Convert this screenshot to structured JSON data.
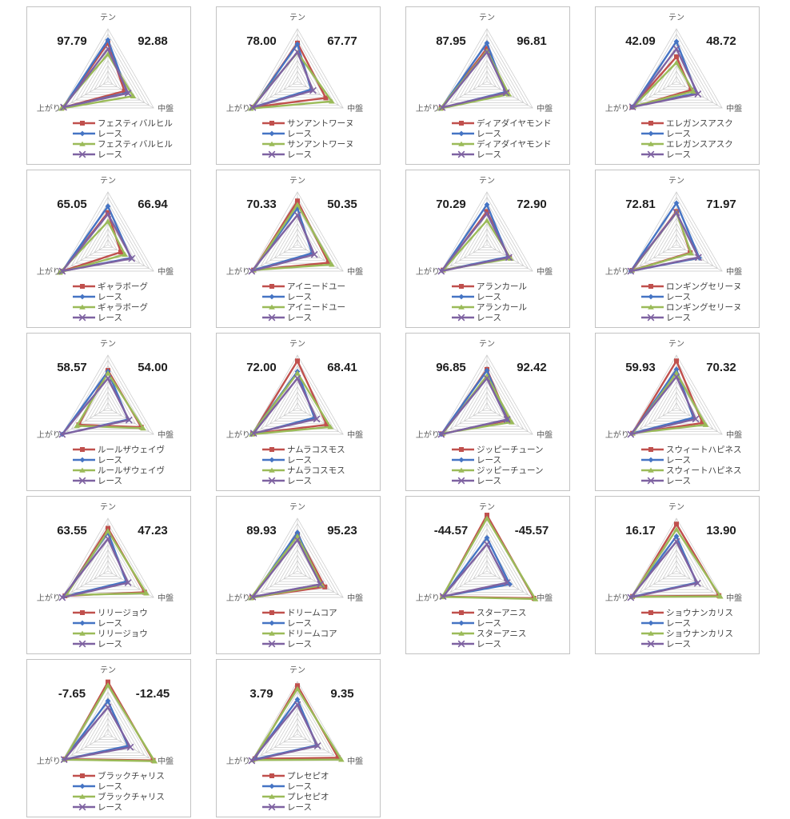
{
  "axis_labels": {
    "top": "テン",
    "right": "中盤",
    "left": "上がり"
  },
  "legend_series_label": "レース",
  "colors": {
    "red": "#C0504D",
    "blue": "#4574C4",
    "green": "#9BBB59",
    "purple": "#7E62A1",
    "grid": "#C9C9C9",
    "panel_border": "#C3C3C3",
    "value_text": "#1F1F1F",
    "axis_text": "#595959",
    "legend_text": "#404040"
  },
  "chart_data": [
    {
      "type": "radar",
      "name": "フェスティバルヒル",
      "left_value": "97.79",
      "right_value": "92.88",
      "axes": [
        "テン",
        "中盤",
        "上がり"
      ],
      "legend": [
        "フェスティバルヒル",
        "レース",
        "フェスティバルヒル",
        "レース"
      ],
      "series": [
        {
          "color": "red",
          "marker": "square",
          "values": [
            0.73,
            0.36,
            0.98
          ]
        },
        {
          "color": "blue",
          "marker": "diamond",
          "values": [
            0.79,
            0.42,
            0.98
          ]
        },
        {
          "color": "green",
          "marker": "triangle",
          "values": [
            0.52,
            0.55,
            1.02
          ]
        },
        {
          "color": "purple",
          "marker": "x",
          "values": [
            0.62,
            0.44,
            0.97
          ]
        }
      ]
    },
    {
      "type": "radar",
      "name": "サンアントワーヌ",
      "left_value": "78.00",
      "right_value": "67.77",
      "axes": [
        "テン",
        "中盤",
        "上がり"
      ],
      "legend": [
        "サンアントワーヌ",
        "レース",
        "サンアントワーヌ",
        "レース"
      ],
      "series": [
        {
          "color": "red",
          "marker": "square",
          "values": [
            0.73,
            0.62,
            0.97
          ]
        },
        {
          "color": "blue",
          "marker": "diamond",
          "values": [
            0.71,
            0.3,
            0.97
          ]
        },
        {
          "color": "green",
          "marker": "triangle",
          "values": [
            0.55,
            0.75,
            1.02
          ]
        },
        {
          "color": "purple",
          "marker": "x",
          "values": [
            0.56,
            0.34,
            0.98
          ]
        }
      ]
    },
    {
      "type": "radar",
      "name": "ディアダイヤモンド",
      "left_value": "87.95",
      "right_value": "96.81",
      "axes": [
        "テン",
        "中盤",
        "上がり"
      ],
      "legend": [
        "ディアダイヤモンド",
        "レース",
        "ディアダイヤモンド",
        "レース"
      ],
      "series": [
        {
          "color": "red",
          "marker": "square",
          "values": [
            0.63,
            0.44,
            1.0
          ]
        },
        {
          "color": "blue",
          "marker": "diamond",
          "values": [
            0.73,
            0.4,
            1.0
          ]
        },
        {
          "color": "green",
          "marker": "triangle",
          "values": [
            0.58,
            0.48,
            1.02
          ]
        },
        {
          "color": "purple",
          "marker": "x",
          "values": [
            0.56,
            0.42,
            0.98
          ]
        }
      ]
    },
    {
      "type": "radar",
      "name": "エレガンスアスク",
      "left_value": "42.09",
      "right_value": "48.72",
      "axes": [
        "テン",
        "中盤",
        "上がり"
      ],
      "legend": [
        "エレガンスアスク",
        "レース",
        "エレガンスアスク",
        "レース"
      ],
      "series": [
        {
          "color": "red",
          "marker": "square",
          "values": [
            0.47,
            0.32,
            0.97
          ]
        },
        {
          "color": "blue",
          "marker": "diamond",
          "values": [
            0.76,
            0.44,
            0.96
          ]
        },
        {
          "color": "green",
          "marker": "triangle",
          "values": [
            0.36,
            0.37,
            0.93
          ]
        },
        {
          "color": "purple",
          "marker": "x",
          "values": [
            0.62,
            0.47,
            0.96
          ]
        }
      ]
    },
    {
      "type": "radar",
      "name": "ギャラボーグ",
      "left_value": "65.05",
      "right_value": "66.94",
      "axes": [
        "テン",
        "中盤",
        "上がり"
      ],
      "legend": [
        "ギャラボーグ",
        "レース",
        "ギャラボーグ",
        "レース"
      ],
      "series": [
        {
          "color": "red",
          "marker": "square",
          "values": [
            0.61,
            0.28,
            1.0
          ]
        },
        {
          "color": "blue",
          "marker": "diamond",
          "values": [
            0.73,
            0.5,
            1.0
          ]
        },
        {
          "color": "green",
          "marker": "triangle",
          "values": [
            0.44,
            0.37,
            1.05
          ]
        },
        {
          "color": "purple",
          "marker": "x",
          "values": [
            0.58,
            0.52,
            1.0
          ]
        }
      ]
    },
    {
      "type": "radar",
      "name": "アイニードユー",
      "left_value": "70.33",
      "right_value": "50.35",
      "axes": [
        "テン",
        "中盤",
        "上がり"
      ],
      "legend": [
        "アイニードユー",
        "レース",
        "アイニードユー",
        "レース"
      ],
      "series": [
        {
          "color": "red",
          "marker": "square",
          "values": [
            0.83,
            0.68,
            0.96
          ]
        },
        {
          "color": "blue",
          "marker": "diamond",
          "values": [
            0.69,
            0.32,
            0.96
          ]
        },
        {
          "color": "green",
          "marker": "triangle",
          "values": [
            0.76,
            0.75,
            0.96
          ]
        },
        {
          "color": "purple",
          "marker": "x",
          "values": [
            0.56,
            0.37,
            1.0
          ]
        }
      ]
    },
    {
      "type": "radar",
      "name": "アランカール",
      "left_value": "70.29",
      "right_value": "72.90",
      "axes": [
        "テン",
        "中盤",
        "上がり"
      ],
      "legend": [
        "アランカール",
        "レース",
        "アランカール",
        "レース"
      ],
      "series": [
        {
          "color": "red",
          "marker": "square",
          "values": [
            0.63,
            0.49,
            0.96
          ]
        },
        {
          "color": "blue",
          "marker": "diamond",
          "values": [
            0.76,
            0.46,
            0.98
          ]
        },
        {
          "color": "green",
          "marker": "triangle",
          "values": [
            0.46,
            0.52,
            0.96
          ]
        },
        {
          "color": "purple",
          "marker": "x",
          "values": [
            0.59,
            0.48,
            1.0
          ]
        }
      ]
    },
    {
      "type": "radar",
      "name": "ロンギングセリーヌ",
      "left_value": "72.81",
      "right_value": "71.97",
      "axes": [
        "テン",
        "中盤",
        "上がり"
      ],
      "legend": [
        "ロンギングセリーヌ",
        "レース",
        "ロンギングセリーヌ",
        "レース"
      ],
      "series": [
        {
          "color": "red",
          "marker": "square",
          "values": [
            0.63,
            0.3,
            0.97
          ]
        },
        {
          "color": "blue",
          "marker": "diamond",
          "values": [
            0.79,
            0.5,
            1.0
          ]
        },
        {
          "color": "green",
          "marker": "triangle",
          "values": [
            0.61,
            0.32,
            0.98
          ]
        },
        {
          "color": "purple",
          "marker": "x",
          "values": [
            0.61,
            0.48,
            1.0
          ]
        }
      ]
    },
    {
      "type": "radar",
      "name": "ルールザウェイヴ",
      "left_value": "58.57",
      "right_value": "54.00",
      "axes": [
        "テン",
        "中盤",
        "上がり"
      ],
      "legend": [
        "ルールザウェイヴ",
        "レース",
        "ルールザウェイヴ",
        "レース"
      ],
      "series": [
        {
          "color": "red",
          "marker": "square",
          "values": [
            0.71,
            0.73,
            0.64
          ]
        },
        {
          "color": "blue",
          "marker": "diamond",
          "values": [
            0.69,
            0.44,
            1.0
          ]
        },
        {
          "color": "green",
          "marker": "triangle",
          "values": [
            0.66,
            0.77,
            0.68
          ]
        },
        {
          "color": "purple",
          "marker": "x",
          "values": [
            0.56,
            0.46,
            1.0
          ]
        }
      ]
    },
    {
      "type": "radar",
      "name": "ナムラコスモス",
      "left_value": "72.00",
      "right_value": "68.41",
      "axes": [
        "テン",
        "中盤",
        "上がり"
      ],
      "legend": [
        "ナムラコスモス",
        "レース",
        "ナムラコスモス",
        "レース"
      ],
      "series": [
        {
          "color": "red",
          "marker": "square",
          "values": [
            0.89,
            0.64,
            0.98
          ]
        },
        {
          "color": "blue",
          "marker": "diamond",
          "values": [
            0.69,
            0.37,
            1.0
          ]
        },
        {
          "color": "green",
          "marker": "triangle",
          "values": [
            0.66,
            0.72,
            1.0
          ]
        },
        {
          "color": "purple",
          "marker": "x",
          "values": [
            0.56,
            0.42,
            0.96
          ]
        }
      ]
    },
    {
      "type": "radar",
      "name": "ジッピーチューン",
      "left_value": "96.85",
      "right_value": "92.42",
      "axes": [
        "テン",
        "中盤",
        "上がり"
      ],
      "legend": [
        "ジッピーチューン",
        "レース",
        "ジッピーチューン",
        "レース"
      ],
      "series": [
        {
          "color": "red",
          "marker": "square",
          "values": [
            0.73,
            0.47,
            0.98
          ]
        },
        {
          "color": "blue",
          "marker": "diamond",
          "values": [
            0.71,
            0.44,
            1.0
          ]
        },
        {
          "color": "green",
          "marker": "triangle",
          "values": [
            0.61,
            0.54,
            0.96
          ]
        },
        {
          "color": "purple",
          "marker": "x",
          "values": [
            0.56,
            0.44,
            1.0
          ]
        }
      ]
    },
    {
      "type": "radar",
      "name": "スウィートハピネス",
      "left_value": "59.93",
      "right_value": "70.32",
      "axes": [
        "テン",
        "中盤",
        "上がり"
      ],
      "legend": [
        "スウィートハピネス",
        "レース",
        "スウィートハピネス",
        "レース"
      ],
      "series": [
        {
          "color": "red",
          "marker": "square",
          "values": [
            0.89,
            0.57,
            0.96
          ]
        },
        {
          "color": "blue",
          "marker": "diamond",
          "values": [
            0.73,
            0.37,
            0.96
          ]
        },
        {
          "color": "green",
          "marker": "triangle",
          "values": [
            0.66,
            0.64,
            0.96
          ]
        },
        {
          "color": "purple",
          "marker": "x",
          "values": [
            0.59,
            0.42,
            1.0
          ]
        }
      ]
    },
    {
      "type": "radar",
      "name": "リリージョウ",
      "left_value": "63.55",
      "right_value": "47.23",
      "axes": [
        "テン",
        "中盤",
        "上がり"
      ],
      "legend": [
        "リリージョウ",
        "レース",
        "リリージョウ",
        "レース"
      ],
      "series": [
        {
          "color": "red",
          "marker": "square",
          "values": [
            0.81,
            0.8,
            0.94
          ]
        },
        {
          "color": "blue",
          "marker": "diamond",
          "values": [
            0.73,
            0.4,
            0.96
          ]
        },
        {
          "color": "green",
          "marker": "triangle",
          "values": [
            0.76,
            0.84,
            0.91
          ]
        },
        {
          "color": "purple",
          "marker": "x",
          "values": [
            0.61,
            0.44,
            1.0
          ]
        }
      ]
    },
    {
      "type": "radar",
      "name": "ドリームコア",
      "left_value": "89.93",
      "right_value": "95.23",
      "axes": [
        "テン",
        "中盤",
        "上がり"
      ],
      "legend": [
        "ドリームコア",
        "レース",
        "ドリームコア",
        "レース"
      ],
      "series": [
        {
          "color": "red",
          "marker": "square",
          "values": [
            0.69,
            0.6,
            1.0
          ]
        },
        {
          "color": "blue",
          "marker": "diamond",
          "values": [
            0.73,
            0.5,
            0.98
          ]
        },
        {
          "color": "green",
          "marker": "triangle",
          "values": [
            0.66,
            0.54,
            1.02
          ]
        },
        {
          "color": "purple",
          "marker": "x",
          "values": [
            0.59,
            0.5,
            0.98
          ]
        }
      ]
    },
    {
      "type": "radar",
      "name": "スターアニス",
      "left_value": "-44.57",
      "right_value": "-45.57",
      "axes": [
        "テン",
        "中盤",
        "上がり"
      ],
      "legend": [
        "スターアニス",
        "レース",
        "スターアニス",
        "レース"
      ],
      "series": [
        {
          "color": "red",
          "marker": "square",
          "values": [
            1.06,
            1.03,
            0.97
          ]
        },
        {
          "color": "blue",
          "marker": "diamond",
          "values": [
            0.63,
            0.5,
            0.96
          ]
        },
        {
          "color": "green",
          "marker": "triangle",
          "values": [
            1.0,
            1.06,
            0.98
          ]
        },
        {
          "color": "purple",
          "marker": "x",
          "values": [
            0.51,
            0.44,
            0.96
          ]
        }
      ]
    },
    {
      "type": "radar",
      "name": "ショウナンカリス",
      "left_value": "16.17",
      "right_value": "13.90",
      "axes": [
        "テン",
        "中盤",
        "上がり"
      ],
      "legend": [
        "ショウナンカリス",
        "レース",
        "ショウナンカリス",
        "レース"
      ],
      "series": [
        {
          "color": "red",
          "marker": "square",
          "values": [
            0.89,
            0.93,
            0.96
          ]
        },
        {
          "color": "blue",
          "marker": "diamond",
          "values": [
            0.66,
            0.44,
            0.98
          ]
        },
        {
          "color": "green",
          "marker": "triangle",
          "values": [
            0.79,
            0.96,
            0.98
          ]
        },
        {
          "color": "purple",
          "marker": "x",
          "values": [
            0.56,
            0.46,
            1.0
          ]
        }
      ]
    },
    {
      "type": "radar",
      "name": "ブラックチャリス",
      "left_value": "-7.65",
      "right_value": "-12.45",
      "axes": [
        "テン",
        "中盤",
        "上がり"
      ],
      "legend": [
        "ブラックチャリス",
        "レース",
        "ブラックチャリス",
        "レース"
      ],
      "series": [
        {
          "color": "red",
          "marker": "square",
          "values": [
            0.99,
            0.99,
            0.94
          ]
        },
        {
          "color": "blue",
          "marker": "diamond",
          "values": [
            0.63,
            0.44,
            0.96
          ]
        },
        {
          "color": "green",
          "marker": "triangle",
          "values": [
            0.93,
            1.02,
            0.96
          ]
        },
        {
          "color": "purple",
          "marker": "x",
          "values": [
            0.51,
            0.49,
            0.96
          ]
        }
      ]
    },
    {
      "type": "radar",
      "name": "プレセピオ",
      "left_value": "3.79",
      "right_value": "9.35",
      "axes": [
        "テン",
        "中盤",
        "上がり"
      ],
      "legend": [
        "プレセピオ",
        "レース",
        "プレセピオ",
        "レース"
      ],
      "series": [
        {
          "color": "red",
          "marker": "square",
          "values": [
            0.92,
            0.89,
            0.93
          ]
        },
        {
          "color": "blue",
          "marker": "diamond",
          "values": [
            0.66,
            0.42,
            0.96
          ]
        },
        {
          "color": "green",
          "marker": "triangle",
          "values": [
            0.86,
            0.96,
            0.98
          ]
        },
        {
          "color": "purple",
          "marker": "x",
          "values": [
            0.56,
            0.44,
            1.0
          ]
        }
      ]
    }
  ]
}
